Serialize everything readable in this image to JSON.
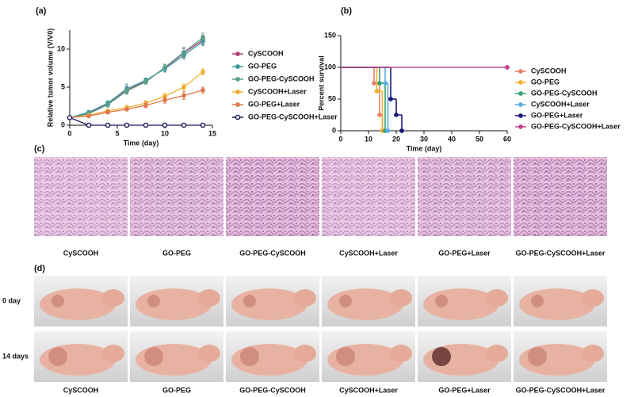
{
  "chart_data": [
    {
      "type": "line",
      "panel_label": "(a)",
      "x_label": "Time (day)",
      "y_label": "Relative tumor volume (V/V0)",
      "x": [
        0,
        2,
        4,
        6,
        8,
        10,
        12,
        14
      ],
      "xlim": [
        0,
        15
      ],
      "xticks": [
        0,
        5,
        10,
        15
      ],
      "ylim": [
        0,
        12.5
      ],
      "yticks": [
        0,
        5,
        10
      ],
      "series": [
        {
          "name": "CySCOOH",
          "color": "#b8407a",
          "values": [
            1,
            1.6,
            2.8,
            4.6,
            5.8,
            7.5,
            9.5,
            11.2
          ],
          "errors": [
            0,
            0.2,
            0.3,
            0.5,
            0.3,
            0.5,
            0.6,
            0.6
          ]
        },
        {
          "name": "GO-PEG",
          "color": "#3a9aa0",
          "values": [
            1,
            1.7,
            2.9,
            4.8,
            5.9,
            7.4,
            9.2,
            11
          ],
          "errors": [
            0,
            0.2,
            0.3,
            0.6,
            0.3,
            0.4,
            0.5,
            0.5
          ]
        },
        {
          "name": "GO-PEG-CySCOOH",
          "color": "#5aa08a",
          "values": [
            1,
            1.5,
            2.7,
            4.5,
            5.7,
            7.6,
            9.6,
            11.5
          ],
          "errors": [
            0,
            0.2,
            0.3,
            0.4,
            0.3,
            0.4,
            0.6,
            0.6
          ]
        },
        {
          "name": "CySCOOH+Laser",
          "color": "#f0b030",
          "values": [
            1,
            1.3,
            1.9,
            2.3,
            2.9,
            3.8,
            5,
            7
          ],
          "errors": [
            0,
            0.1,
            0.2,
            0.3,
            0.3,
            0.4,
            0.4,
            0.4
          ]
        },
        {
          "name": "GO-PEG+Laser",
          "color": "#e07850",
          "values": [
            1,
            1.2,
            1.7,
            2.1,
            2.6,
            3.3,
            3.9,
            4.6
          ],
          "errors": [
            0,
            0.1,
            0.2,
            0.2,
            0.3,
            0.4,
            0.5,
            0.4
          ]
        },
        {
          "name": "GO-PEG-CySCOOH+Laser",
          "color": "#1a1a5a",
          "open": true,
          "values": [
            1,
            0,
            0,
            0,
            0,
            0,
            0,
            0
          ],
          "errors": [
            0,
            0,
            0,
            0,
            0,
            0,
            0,
            0
          ]
        }
      ]
    },
    {
      "type": "step",
      "panel_label": "(b)",
      "x_label": "Time (day)",
      "y_label": "Percent survival",
      "xlim": [
        0,
        60
      ],
      "xticks": [
        0,
        10,
        20,
        30,
        40,
        50,
        60
      ],
      "ylim": [
        0,
        150
      ],
      "yticks": [
        0,
        50,
        100,
        150
      ],
      "series": [
        {
          "name": "CySCOOH",
          "color": "#e8826a",
          "x": [
            0,
            12,
            14,
            15
          ],
          "values": [
            100,
            75,
            25,
            0
          ]
        },
        {
          "name": "GO-PEG",
          "color": "#f0b030",
          "x": [
            0,
            13,
            15
          ],
          "values": [
            100,
            62.5,
            0
          ]
        },
        {
          "name": "GO-PEG-CySCOOH",
          "color": "#3aa070",
          "x": [
            0,
            14,
            16
          ],
          "values": [
            100,
            75,
            0
          ]
        },
        {
          "name": "CySCOOH+Laser",
          "color": "#5ab0e0",
          "x": [
            0,
            16,
            17
          ],
          "values": [
            100,
            75,
            0
          ]
        },
        {
          "name": "GO-PEG+Laser",
          "color": "#1a1a7a",
          "x": [
            0,
            18,
            20,
            22
          ],
          "values": [
            100,
            50,
            25,
            0
          ]
        },
        {
          "name": "GO-PEG-CySCOOH+Laser",
          "color": "#c0408a",
          "x": [
            0,
            60
          ],
          "values": [
            100,
            100
          ]
        }
      ]
    }
  ],
  "panel_c": {
    "panel_label": "(c)",
    "captions": [
      "CySCOOH",
      "GO-PEG",
      "GO-PEG-CySCOOH",
      "CySCOOH+Laser",
      "GO-PEG+Laser",
      "GO-PEG-CySCOOH+Laser"
    ]
  },
  "panel_d": {
    "panel_label": "(d)",
    "row_labels": [
      "0  day",
      "14 days"
    ],
    "captions": [
      "CySCOOH",
      "GO-PEG",
      "GO-PEG-CySCOOH",
      "CySCOOH+Laser",
      "GO-PEG+Laser",
      "GO-PEG-CySCOOH+Laser"
    ]
  }
}
